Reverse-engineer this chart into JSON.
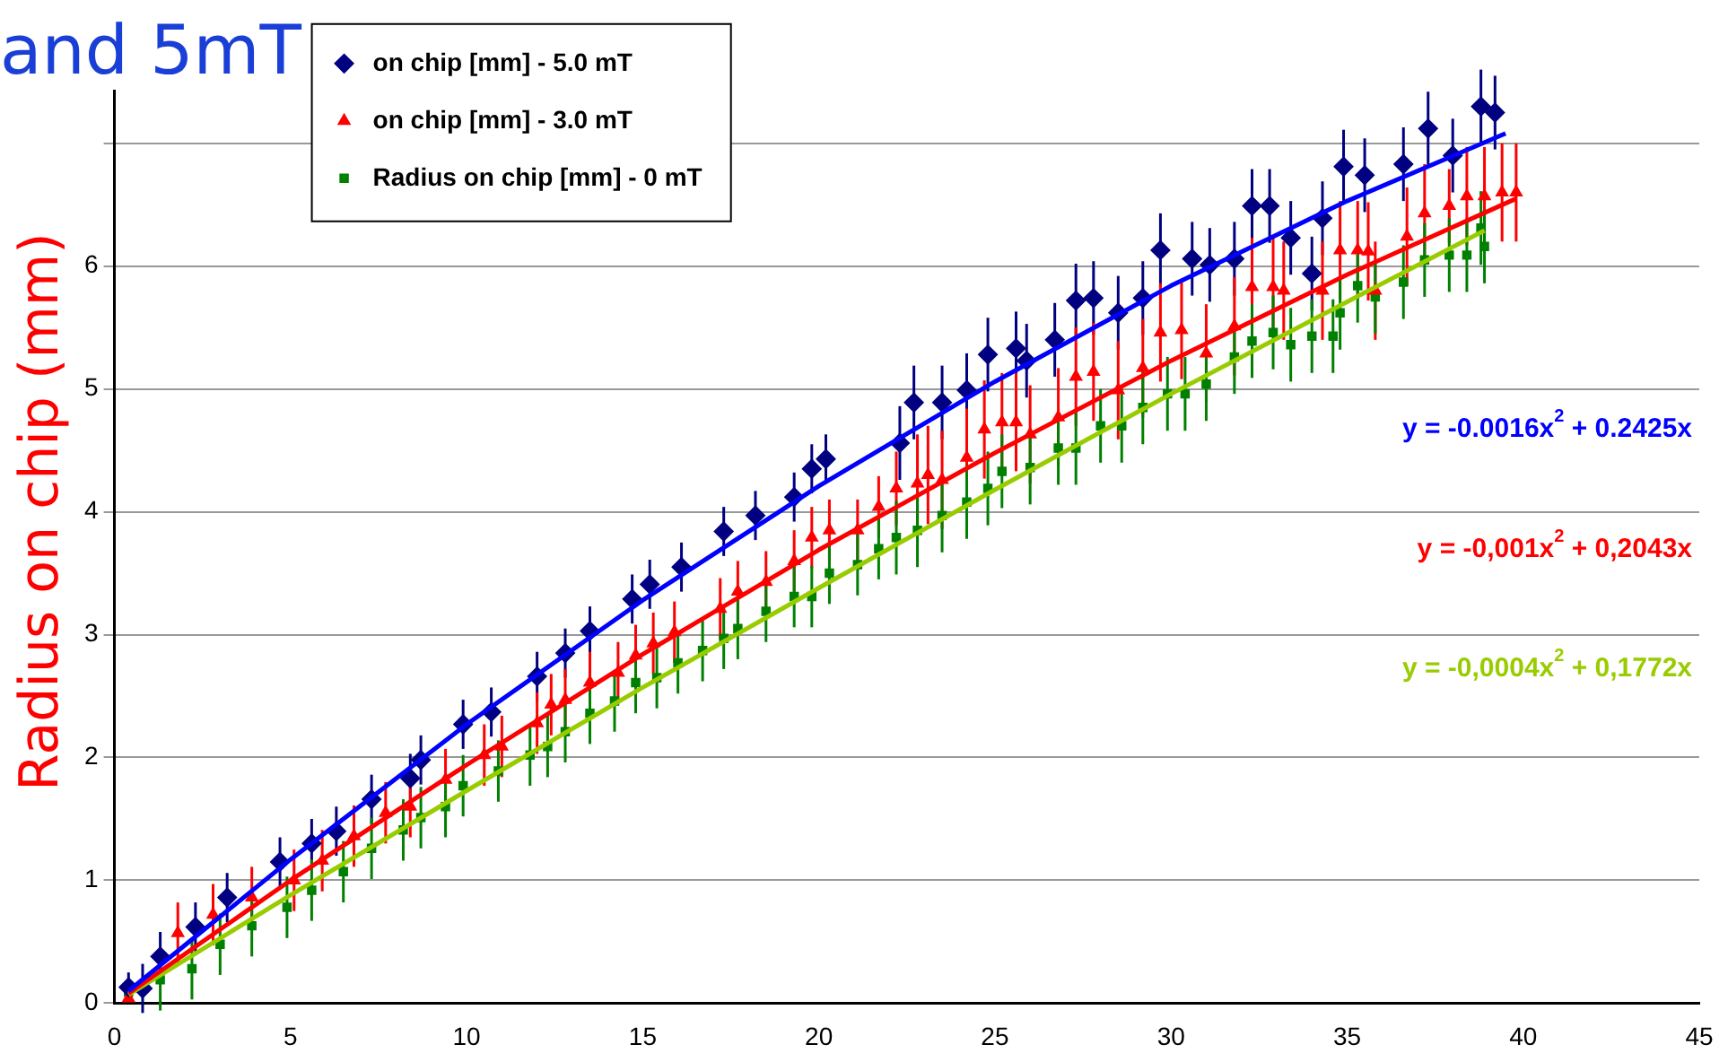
{
  "chart_data": {
    "type": "scatter",
    "title": "and 5mT",
    "ylabel": "Radius on chip (mm)",
    "xlim": [
      0,
      45
    ],
    "xticks": [
      0,
      5,
      10,
      15,
      20,
      25,
      30,
      35,
      40,
      45
    ],
    "ylim": [
      0,
      8
    ],
    "yticks": [
      0,
      1,
      2,
      3,
      4,
      5,
      6,
      {
        "value": 7,
        "label": null
      }
    ],
    "grid": "y",
    "legend": "top left",
    "annotations": [
      "y = -0.0016x$^{2}$ + 0.2425x",
      "y = -0,001x$^{2}$ + 0,2043x",
      "y = -0,0004x$^{2}$ + 0,1772x"
    ],
    "series": [
      {
        "name": "on chip [mm] - 5.0 mT",
        "type": "scatter",
        "color": "#000080",
        "marker": "diamond",
        "x": [
          0.4,
          0.8,
          1.3,
          2.3,
          3.2,
          4.7,
          5.6,
          6.3,
          7.3,
          8.4,
          8.7,
          9.9,
          10.7,
          12.0,
          12.8,
          13.5,
          14.7,
          15.2,
          16.1,
          17.3,
          18.2,
          19.3,
          19.8,
          20.2,
          22.3,
          22.7,
          23.5,
          24.2,
          24.8,
          25.6,
          25.9,
          26.7,
          27.3,
          27.8,
          28.5,
          29.2,
          29.7,
          30.6,
          31.1,
          31.8,
          32.3,
          32.8,
          33.4,
          34.0,
          34.3,
          34.9,
          35.5,
          36.6,
          37.3,
          38.0,
          38.8,
          39.2
        ],
        "values": [
          0.13,
          0.12,
          0.38,
          0.62,
          0.86,
          1.15,
          1.3,
          1.4,
          1.66,
          1.83,
          1.98,
          2.27,
          2.37,
          2.66,
          2.85,
          3.03,
          3.29,
          3.41,
          3.55,
          3.84,
          3.97,
          4.12,
          4.35,
          4.43,
          4.56,
          4.89,
          4.89,
          4.99,
          5.28,
          5.33,
          5.23,
          5.4,
          5.72,
          5.74,
          5.62,
          5.74,
          6.13,
          6.06,
          6.01,
          6.06,
          6.49,
          6.49,
          6.23,
          5.94,
          6.39,
          6.81,
          6.74,
          6.83,
          7.12,
          6.9,
          7.3,
          7.25
        ],
        "errors": [
          0.12,
          0.2,
          0.2,
          0.2,
          0.2,
          0.2,
          0.2,
          0.2,
          0.2,
          0.2,
          0.2,
          0.2,
          0.2,
          0.2,
          0.2,
          0.2,
          0.2,
          0.2,
          0.2,
          0.2,
          0.2,
          0.2,
          0.2,
          0.2,
          0.3,
          0.3,
          0.3,
          0.3,
          0.3,
          0.3,
          0.3,
          0.3,
          0.3,
          0.3,
          0.3,
          0.3,
          0.3,
          0.3,
          0.3,
          0.3,
          0.3,
          0.3,
          0.3,
          0.3,
          0.3,
          0.3,
          0.3,
          0.3,
          0.3,
          0.3,
          0.3,
          0.3
        ]
      },
      {
        "name": "on chip [mm] - 3.0 mT",
        "type": "scatter",
        "color": "#ff0000",
        "marker": "triangle",
        "x": [
          0.4,
          1.8,
          2.8,
          3.9,
          5.1,
          5.9,
          6.8,
          7.7,
          8.4,
          9.4,
          10.5,
          11.0,
          12.0,
          12.4,
          12.8,
          13.5,
          14.3,
          14.8,
          15.3,
          15.9,
          17.2,
          17.7,
          18.5,
          19.3,
          19.8,
          20.3,
          21.1,
          21.7,
          22.2,
          22.8,
          23.1,
          23.5,
          24.2,
          24.7,
          25.2,
          25.6,
          26.0,
          26.8,
          27.3,
          27.8,
          28.5,
          29.2,
          29.7,
          30.3,
          31.0,
          31.8,
          32.3,
          32.9,
          33.2,
          34.3,
          34.8,
          35.3,
          35.6,
          35.8,
          36.7,
          37.2,
          37.9,
          38.4,
          38.9,
          39.4,
          39.8
        ],
        "values": [
          0.04,
          0.57,
          0.72,
          0.86,
          1.0,
          1.16,
          1.36,
          1.55,
          1.6,
          1.82,
          2.02,
          2.09,
          2.28,
          2.43,
          2.47,
          2.61,
          2.69,
          2.83,
          2.93,
          3.02,
          3.21,
          3.35,
          3.43,
          3.6,
          3.79,
          3.85,
          3.85,
          4.04,
          4.19,
          4.23,
          4.3,
          4.26,
          4.44,
          4.67,
          4.73,
          4.73,
          4.63,
          4.77,
          5.1,
          5.14,
          4.99,
          5.17,
          5.46,
          5.48,
          5.29,
          5.51,
          5.83,
          5.83,
          5.8,
          5.8,
          6.13,
          6.13,
          6.12,
          5.8,
          6.24,
          6.43,
          6.49,
          6.57,
          6.57,
          6.6,
          6.6
        ],
        "errors": [
          null,
          0.25,
          0.25,
          0.25,
          0.25,
          0.25,
          0.25,
          0.25,
          0.25,
          0.25,
          0.25,
          0.25,
          0.25,
          0.25,
          0.25,
          0.25,
          0.25,
          0.25,
          0.25,
          0.25,
          0.25,
          0.25,
          0.25,
          0.25,
          0.25,
          0.25,
          0.25,
          0.25,
          0.3,
          0.4,
          0.4,
          0.4,
          0.4,
          0.4,
          0.4,
          0.4,
          0.4,
          0.4,
          0.4,
          0.4,
          0.4,
          0.4,
          0.4,
          0.4,
          0.4,
          0.4,
          0.4,
          0.4,
          0.4,
          0.4,
          0.4,
          0.4,
          0.4,
          0.4,
          0.4,
          0.4,
          0.3,
          0.4,
          0.4,
          0.4,
          0.4
        ]
      },
      {
        "name": "Radius on chip [mm] - 0 mT",
        "type": "scatter",
        "color": "#008000",
        "marker": "square",
        "x": [
          0.4,
          1.3,
          2.2,
          3.0,
          3.9,
          4.9,
          5.6,
          6.5,
          7.3,
          8.2,
          8.7,
          9.4,
          9.9,
          10.9,
          11.8,
          12.3,
          12.8,
          13.5,
          14.2,
          14.8,
          15.4,
          16.0,
          16.7,
          17.3,
          17.7,
          18.5,
          19.3,
          19.8,
          20.3,
          21.1,
          21.7,
          22.2,
          22.8,
          23.5,
          24.2,
          24.8,
          25.2,
          26.0,
          26.8,
          27.3,
          28.0,
          28.6,
          29.2,
          29.9,
          30.4,
          31.0,
          31.8,
          32.3,
          32.9,
          33.4,
          34.0,
          34.6,
          34.8,
          35.3,
          35.8,
          36.6,
          37.2,
          37.9,
          38.4,
          38.8,
          38.9
        ],
        "values": [
          0.09,
          0.19,
          0.28,
          0.48,
          0.63,
          0.78,
          0.92,
          1.07,
          1.26,
          1.41,
          1.51,
          1.6,
          1.77,
          1.89,
          2.02,
          2.09,
          2.21,
          2.36,
          2.46,
          2.61,
          2.65,
          2.77,
          2.87,
          2.97,
          3.05,
          3.19,
          3.31,
          3.31,
          3.5,
          3.57,
          3.7,
          3.79,
          3.85,
          3.97,
          4.08,
          4.19,
          4.33,
          4.36,
          4.52,
          4.52,
          4.7,
          4.7,
          4.85,
          4.96,
          4.96,
          5.04,
          5.26,
          5.39,
          5.46,
          5.36,
          5.43,
          5.43,
          5.62,
          5.84,
          5.75,
          5.87,
          6.05,
          6.09,
          6.09,
          6.31,
          6.16
        ],
        "errors": [
          null,
          0.25,
          0.25,
          0.25,
          0.25,
          0.25,
          0.25,
          0.25,
          0.25,
          0.25,
          0.25,
          0.25,
          0.25,
          0.25,
          0.25,
          0.25,
          0.25,
          0.25,
          0.25,
          0.25,
          0.25,
          0.25,
          0.25,
          0.25,
          0.25,
          0.25,
          0.25,
          0.25,
          0.25,
          0.25,
          0.25,
          0.3,
          0.3,
          0.3,
          0.3,
          0.3,
          0.3,
          0.3,
          0.3,
          0.3,
          0.3,
          0.3,
          0.3,
          0.3,
          0.3,
          0.3,
          0.3,
          0.3,
          0.3,
          0.3,
          0.3,
          0.3,
          0.3,
          0.3,
          0.3,
          0.3,
          0.3,
          0.3,
          0.3,
          0.3,
          0.3
        ]
      },
      {
        "type": "line",
        "color": "#0000ff",
        "x": [
          0.4,
          5,
          10,
          15,
          20,
          25,
          30,
          35,
          39.5
        ],
        "values": [
          0.1,
          1.17,
          2.27,
          3.28,
          4.21,
          5.06,
          5.84,
          6.53,
          7.08
        ]
      },
      {
        "type": "line",
        "color": "#ff0000",
        "x": [
          0.4,
          5,
          10,
          15,
          20,
          25,
          30,
          35,
          39.8
        ],
        "values": [
          0.08,
          1.0,
          1.94,
          2.84,
          3.69,
          4.48,
          5.23,
          5.93,
          6.55
        ]
      },
      {
        "type": "line",
        "color": "#99cc00",
        "x": [
          0.4,
          5,
          10,
          15,
          20,
          25,
          30,
          35,
          38.9
        ],
        "values": [
          0.07,
          0.88,
          1.73,
          2.57,
          3.38,
          4.18,
          4.96,
          5.71,
          6.29
        ]
      }
    ]
  }
}
